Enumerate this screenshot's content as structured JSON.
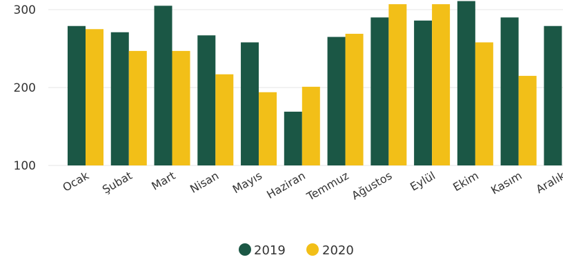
{
  "chart_data": {
    "type": "bar",
    "categories": [
      "Ocak",
      "Şubat",
      "Mart",
      "Nisan",
      "Mayıs",
      "Haziran",
      "Temmuz",
      "Ağustos",
      "Eylül",
      "Ekim",
      "Kasım",
      "Aralık"
    ],
    "series": [
      {
        "name": "2019",
        "color": "#1b5745",
        "values": [
          279,
          271,
          305,
          267,
          258,
          169,
          265,
          290,
          286,
          311,
          290,
          279
        ]
      },
      {
        "name": "2020",
        "color": "#f2bf18",
        "values": [
          275,
          247,
          247,
          217,
          194,
          201,
          269,
          307,
          307,
          258,
          215,
          null
        ]
      }
    ],
    "ylim": [
      100,
      315
    ],
    "yticks": [
      100,
      200,
      300
    ],
    "grid": true,
    "legend_position": "bottom-center",
    "title": "",
    "xlabel": "",
    "ylabel": ""
  }
}
